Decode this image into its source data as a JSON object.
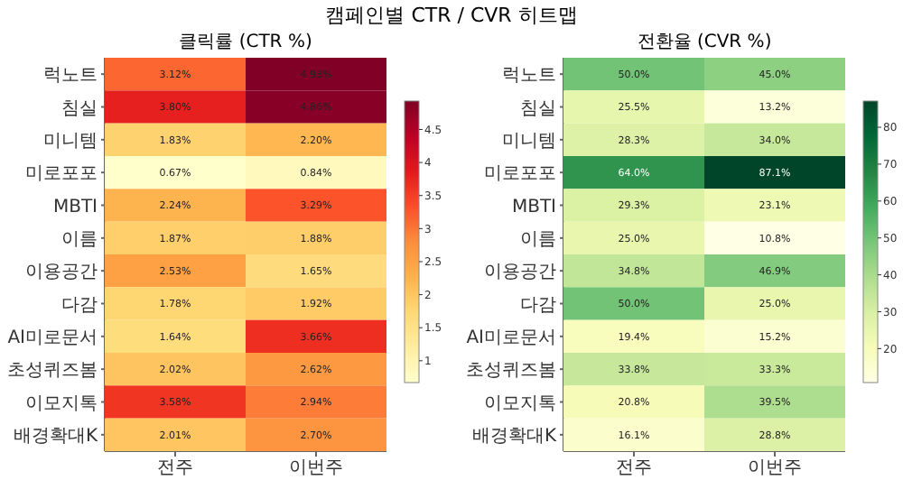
{
  "chart_data": [
    {
      "type": "heatmap",
      "title": "클릭률 (CTR %)",
      "annotations": [
        "캠페인별 CTR / CVR 히트맵"
      ],
      "categories": [
        "전주",
        "이번주"
      ],
      "y_categories": [
        "럭노트",
        "침실",
        "미니템",
        "미로포포",
        "MBTI",
        "이름",
        "이용공간",
        "다감",
        "AI미로문서",
        "초성퀴즈봄",
        "이모지톡",
        "배경확대K"
      ],
      "cells": [
        [
          3.12,
          4.93
        ],
        [
          3.8,
          4.86
        ],
        [
          1.83,
          2.2
        ],
        [
          0.67,
          0.84
        ],
        [
          2.24,
          3.29
        ],
        [
          1.87,
          1.88
        ],
        [
          2.53,
          1.65
        ],
        [
          1.78,
          1.92
        ],
        [
          1.64,
          3.66
        ],
        [
          2.02,
          2.62
        ],
        [
          3.58,
          2.94
        ],
        [
          2.01,
          2.7
        ]
      ],
      "cell_labels": [
        [
          "3.12%",
          "4.93%"
        ],
        [
          "3.80%",
          "4.86%"
        ],
        [
          "1.83%",
          "2.20%"
        ],
        [
          "0.67%",
          "0.84%"
        ],
        [
          "2.24%",
          "3.29%"
        ],
        [
          "1.87%",
          "1.88%"
        ],
        [
          "2.53%",
          "1.65%"
        ],
        [
          "1.78%",
          "1.92%"
        ],
        [
          "1.64%",
          "3.66%"
        ],
        [
          "2.02%",
          "2.62%"
        ],
        [
          "3.58%",
          "2.94%"
        ],
        [
          "2.01%",
          "2.70%"
        ]
      ],
      "clim": [
        0.67,
        4.93
      ],
      "cticks": [
        1.0,
        1.5,
        2.0,
        2.5,
        3.0,
        3.5,
        4.0,
        4.5
      ]
    },
    {
      "type": "heatmap",
      "title": "전환율 (CVR %)",
      "categories": [
        "전주",
        "이번주"
      ],
      "y_categories": [
        "럭노트",
        "침실",
        "미니템",
        "미로포포",
        "MBTI",
        "이름",
        "이용공간",
        "다감",
        "AI미로문서",
        "초성퀴즈봄",
        "이모지톡",
        "배경확대K"
      ],
      "cells": [
        [
          50.0,
          45.0
        ],
        [
          25.5,
          13.2
        ],
        [
          28.3,
          34.0
        ],
        [
          64.0,
          87.1
        ],
        [
          29.3,
          23.1
        ],
        [
          25.0,
          10.8
        ],
        [
          34.8,
          46.9
        ],
        [
          50.0,
          25.0
        ],
        [
          19.4,
          15.2
        ],
        [
          33.8,
          33.3
        ],
        [
          20.8,
          39.5
        ],
        [
          16.1,
          28.8
        ]
      ],
      "cell_labels": [
        [
          "50.0%",
          "45.0%"
        ],
        [
          "25.5%",
          "13.2%"
        ],
        [
          "28.3%",
          "34.0%"
        ],
        [
          "64.0%",
          "87.1%"
        ],
        [
          "29.3%",
          "23.1%"
        ],
        [
          "25.0%",
          "10.8%"
        ],
        [
          "34.8%",
          "46.9%"
        ],
        [
          "50.0%",
          "25.0%"
        ],
        [
          "19.4%",
          "15.2%"
        ],
        [
          "33.8%",
          "33.3%"
        ],
        [
          "20.8%",
          "39.5%"
        ],
        [
          "16.1%",
          "28.8%"
        ]
      ],
      "clim": [
        10.8,
        87.1
      ],
      "cticks": [
        20,
        30,
        40,
        50,
        60,
        70,
        80
      ]
    }
  ]
}
